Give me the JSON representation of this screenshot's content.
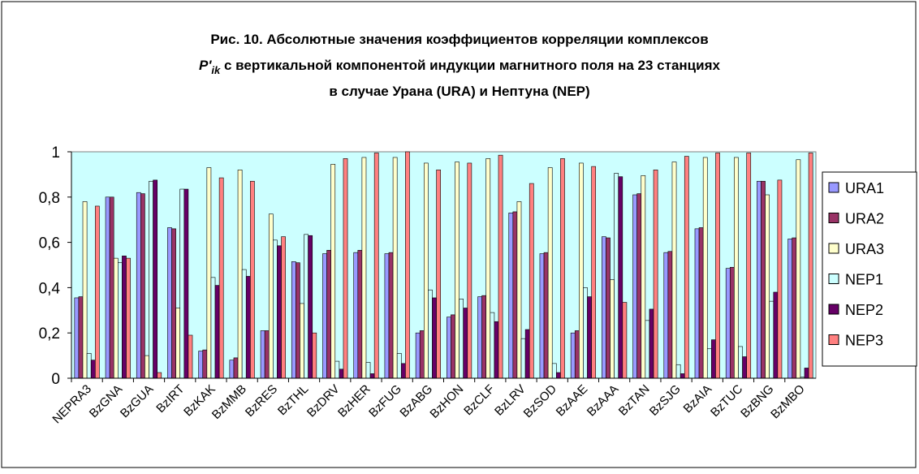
{
  "chart_data": {
    "type": "bar",
    "title_line1": "Рис. 10. Абсолютные значения коэффициентов корреляции комплексов",
    "title_symbol": "P'",
    "title_subscript": "ik",
    "title_line2": " с вертикальной компонентой индукции магнитного поля на 23 станциях",
    "title_line3": "в случае Урана (URA) и Нептуна (NEP)",
    "categories": [
      "NEPRA3",
      "BzGNA",
      "BzGUA",
      "BzIRT",
      "BzKAK",
      "BzMMB",
      "BzRES",
      "BzTHL",
      "BzDRV",
      "BzHER",
      "BzFUG",
      "BzABG",
      "BzHON",
      "BzCLF",
      "BzLRV",
      "BzSOD",
      "BzAAE",
      "BzAAA",
      "BzTAN",
      "BzSJG",
      "BzAIA",
      "BzTUC",
      "BzBNG",
      "BzMBO"
    ],
    "series": [
      {
        "name": "URA1",
        "color": "#9999ff",
        "values": [
          0.355,
          0.8,
          0.82,
          0.665,
          0.12,
          0.08,
          0.21,
          0.515,
          0.55,
          0.555,
          0.55,
          0.2,
          0.27,
          0.36,
          0.73,
          0.55,
          0.2,
          0.625,
          0.81,
          0.555,
          0.66,
          0.485,
          0.87,
          0.615
        ]
      },
      {
        "name": "URA2",
        "color": "#993366",
        "values": [
          0.36,
          0.8,
          0.815,
          0.66,
          0.125,
          0.09,
          0.21,
          0.51,
          0.565,
          0.565,
          0.555,
          0.21,
          0.28,
          0.365,
          0.735,
          0.555,
          0.21,
          0.62,
          0.815,
          0.56,
          0.665,
          0.49,
          0.87,
          0.62
        ]
      },
      {
        "name": "URA3",
        "color": "#ffffcc",
        "values": [
          0.78,
          0.53,
          0.1,
          0.31,
          0.93,
          0.92,
          0.725,
          0.33,
          0.945,
          0.975,
          0.975,
          0.95,
          0.955,
          0.97,
          0.78,
          0.93,
          0.95,
          0.435,
          0.895,
          0.955,
          0.975,
          0.975,
          0.81,
          0.965
        ]
      },
      {
        "name": "NEP1",
        "color": "#ccffff",
        "values": [
          0.11,
          0.51,
          0.87,
          0.835,
          0.445,
          0.48,
          0.61,
          0.635,
          0.075,
          0.07,
          0.11,
          0.39,
          0.35,
          0.29,
          0.175,
          0.065,
          0.4,
          0.905,
          0.255,
          0.06,
          0.13,
          0.14,
          0.34,
          0.005
        ]
      },
      {
        "name": "NEP2",
        "color": "#660066",
        "values": [
          0.08,
          0.54,
          0.875,
          0.835,
          0.41,
          0.45,
          0.585,
          0.63,
          0.04,
          0.02,
          0.065,
          0.355,
          0.31,
          0.25,
          0.215,
          0.025,
          0.36,
          0.89,
          0.305,
          0.02,
          0.17,
          0.095,
          0.38,
          0.045
        ]
      },
      {
        "name": "NEP3",
        "color": "#ff8080",
        "values": [
          0.76,
          0.53,
          0.025,
          0.19,
          0.885,
          0.87,
          0.625,
          0.2,
          0.97,
          0.995,
          1.0,
          0.92,
          0.95,
          0.985,
          0.86,
          0.97,
          0.935,
          0.335,
          0.92,
          0.98,
          0.995,
          0.995,
          0.875,
          0.995
        ]
      }
    ],
    "ylim": [
      0,
      1
    ],
    "yticks": [
      0,
      {
        "value": 0.2,
        "label": "0,2"
      },
      {
        "value": 0.4,
        "label": "0,4"
      },
      {
        "value": 0.6,
        "label": "0,6"
      },
      {
        "value": 0.8,
        "label": "0,8"
      },
      1
    ],
    "plot_background": "#ccffff",
    "grid": false,
    "legend": "right"
  }
}
